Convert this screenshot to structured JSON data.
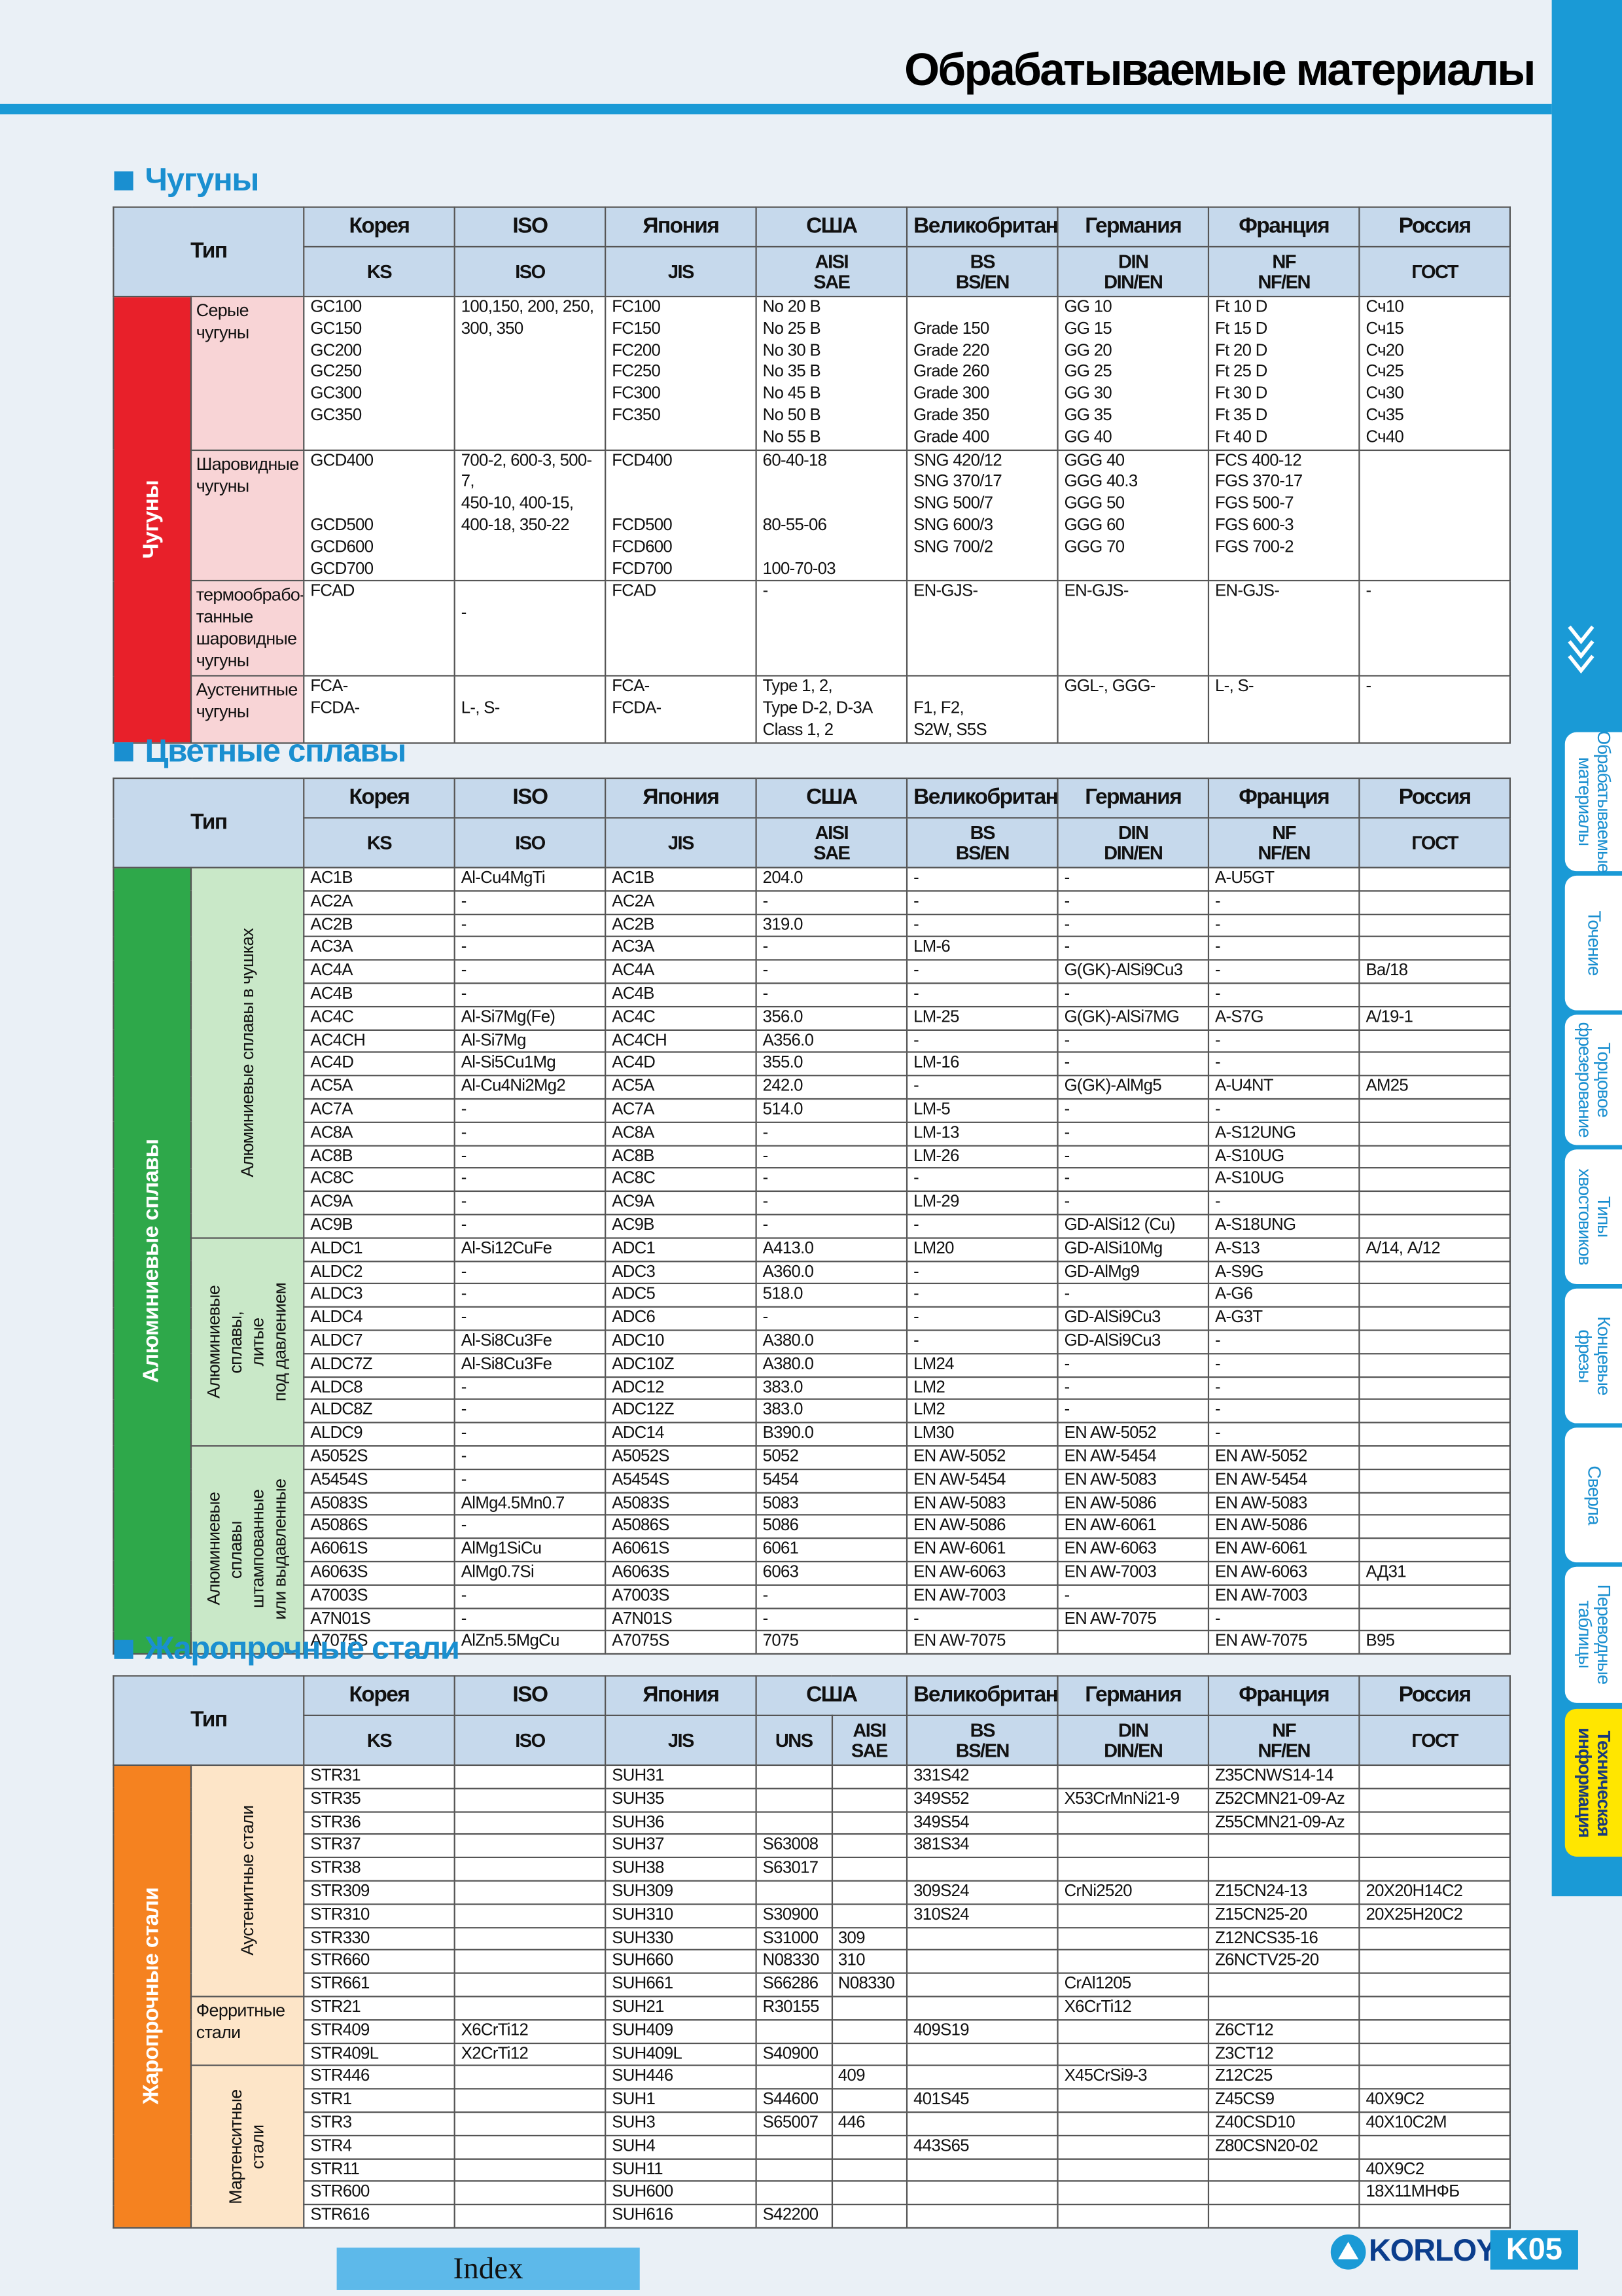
{
  "header": {
    "title": "Обрабатываемые материалы"
  },
  "sections": [
    {
      "title": "Чугуны",
      "type_label": "Тип",
      "columns": [
        {
          "country": "Корея",
          "standards": [
            "KS"
          ]
        },
        {
          "country": "ISO",
          "standards": [
            "ISO"
          ]
        },
        {
          "country": "Япония",
          "standards": [
            "JIS"
          ]
        },
        {
          "country": "США",
          "standards": [
            "AISI\nSAE"
          ]
        },
        {
          "country": "Великобритания",
          "standards": [
            "BS\nBS/EN"
          ]
        },
        {
          "country": "Германия",
          "standards": [
            "DIN\nDIN/EN"
          ]
        },
        {
          "country": "Франция",
          "standards": [
            "NF\nNF/EN"
          ]
        },
        {
          "country": "Россия",
          "standards": [
            "ГОСТ"
          ]
        }
      ],
      "group": "Чугуны",
      "subgroups": [
        {
          "name": "Серые\nчугуны",
          "rows": [
            [
              "GC100\nGC150\nGC200\nGC250\nGC300\nGC350",
              "100,150, 200, 250,\n300, 350",
              "FC100\nFC150\nFC200\nFC250\nFC300\nFC350",
              "No 20 B\nNo 25 B\nNo 30 B\nNo 35 B\nNo 45 B\nNo 50 B\nNo 55 B",
              "\nGrade 150\nGrade 220\nGrade 260\nGrade 300\nGrade 350\nGrade 400",
              "GG 10\nGG 15\nGG 20\nGG 25\nGG 30\nGG 35\nGG 40",
              "Ft 10 D\nFt 15 D\nFt 20 D\nFt 25 D\nFt 30 D\nFt 35 D\nFt 40 D",
              "Сч10\nСч15\nСч20\nСч25\nСч30\nСч35\nСч40"
            ]
          ]
        },
        {
          "name": "Шаровидные\nчугуны",
          "rows": [
            [
              "GCD400\n\n\nGCD500\nGCD600\nGCD700",
              "700-2, 600-3, 500-\n7,\n450-10, 400-15,\n400-18, 350-22",
              "FCD400\n\n\nFCD500\nFCD600\nFCD700",
              "60-40-18\n\n\n80-55-06\n\n100-70-03",
              "SNG 420/12\nSNG 370/17\nSNG 500/7\nSNG 600/3\nSNG 700/2",
              "GGG 40\nGGG 40.3\nGGG 50\nGGG 60\nGGG 70",
              "FCS 400-12\nFGS 370-17\nFGS 500-7\nFGS 600-3\nFGS 700-2",
              null
            ]
          ]
        },
        {
          "name": "термообрабо-\nтанные\nшаровидные\nчугуны",
          "rows": [
            [
              "FCAD",
              "\n-",
              "FCAD",
              "-",
              "EN-GJS-",
              "EN-GJS-",
              "EN-GJS-",
              "-"
            ]
          ]
        },
        {
          "name": "Аустенитные\nчугуны",
          "rows": [
            [
              "FCA-\nFCDA-",
              "\nL-, S-",
              "FCA-\nFCDA-",
              "Type 1, 2,\nType D-2, D-3A\nClass 1, 2",
              "\nF1, F2,\nS2W, S5S",
              "GGL-, GGG-",
              "L-, S-",
              "-"
            ]
          ]
        }
      ]
    },
    {
      "title": "Цветные сплавы",
      "type_label": "Тип",
      "columns": [
        {
          "country": "Корея",
          "standards": [
            "KS"
          ]
        },
        {
          "country": "ISO",
          "standards": [
            "ISO"
          ]
        },
        {
          "country": "Япония",
          "standards": [
            "JIS"
          ]
        },
        {
          "country": "США",
          "standards": [
            "AISI\nSAE"
          ]
        },
        {
          "country": "Великобритания",
          "standards": [
            "BS\nBS/EN"
          ]
        },
        {
          "country": "Германия",
          "standards": [
            "DIN\nDIN/EN"
          ]
        },
        {
          "country": "Франция",
          "standards": [
            "NF\nNF/EN"
          ]
        },
        {
          "country": "Россия",
          "standards": [
            "ГОСТ"
          ]
        }
      ],
      "group": "Алюминиевые сплавы",
      "subgroups": [
        {
          "name": "Алюминиевые сплавы в чушках",
          "rows": [
            [
              "AC1B",
              "Al-Cu4MgTi",
              "AC1B",
              "204.0",
              "-",
              "-",
              "A-U5GT",
              null
            ],
            [
              "AC2A",
              "-",
              "AC2A",
              "-",
              "-",
              "-",
              "-",
              null
            ],
            [
              "AC2B",
              "-",
              "AC2B",
              "319.0",
              "-",
              "-",
              "-",
              null
            ],
            [
              "AC3A",
              "-",
              "AC3A",
              "-",
              "LM-6",
              "-",
              "-",
              null
            ],
            [
              "AC4A",
              "-",
              "AC4A",
              "-",
              "-",
              "G(GK)-AlSi9Cu3",
              "-",
              "Ва/18"
            ],
            [
              "AC4B",
              "-",
              "AC4B",
              "-",
              "-",
              "-",
              "-",
              null
            ],
            [
              "AC4C",
              "Al-Si7Mg(Fe)",
              "AC4C",
              "356.0",
              "LM-25",
              "G(GK)-AlSi7MG",
              "A-S7G",
              "А/19-1"
            ],
            [
              "AC4CH",
              "Al-Si7Mg",
              "AC4CH",
              "A356.0",
              "-",
              "-",
              "-",
              null
            ],
            [
              "AC4D",
              "Al-Si5Cu1Mg",
              "AC4D",
              "355.0",
              "LM-16",
              "-",
              "-",
              null
            ],
            [
              "AC5A",
              "Al-Cu4Ni2Mg2",
              "AC5A",
              "242.0",
              "-",
              "G(GK)-AlMg5",
              "A-U4NT",
              "АМ25"
            ],
            [
              "AC7A",
              "-",
              "AC7A",
              "514.0",
              "LM-5",
              "-",
              "-",
              null
            ],
            [
              "AC8A",
              "-",
              "AC8A",
              "-",
              "LM-13",
              "-",
              "A-S12UNG",
              null
            ],
            [
              "AC8B",
              "-",
              "AC8B",
              "-",
              "LM-26",
              "-",
              "A-S10UG",
              null
            ],
            [
              "AC8C",
              "-",
              "AC8C",
              "-",
              "-",
              "-",
              "A-S10UG",
              null
            ],
            [
              "AC9A",
              "-",
              "AC9A",
              "-",
              "LM-29",
              "-",
              "-",
              null
            ],
            [
              "AC9B",
              "-",
              "AC9B",
              "-",
              "-",
              "GD-AlSi12 (Cu)",
              "A-S18UNG",
              null
            ]
          ]
        },
        {
          "name": "Алюминиевые\nсплавы,\nлитые\nпод давлением",
          "rows": [
            [
              "ALDC1",
              "Al-Si12CuFe",
              "ADC1",
              "A413.0",
              "LM20",
              "GD-AlSi10Mg",
              "A-S13",
              "А/14, А/12"
            ],
            [
              "ALDC2",
              "-",
              "ADC3",
              "A360.0",
              "-",
              "GD-AlMg9",
              "A-S9G",
              null
            ],
            [
              "ALDC3",
              "-",
              "ADC5",
              "518.0",
              "-",
              "-",
              "A-G6",
              null
            ],
            [
              "ALDC4",
              "-",
              "ADC6",
              "-",
              "-",
              "GD-AlSi9Cu3",
              "A-G3T",
              null
            ],
            [
              "ALDC7",
              "Al-Si8Cu3Fe",
              "ADC10",
              "A380.0",
              "-",
              "GD-AlSi9Cu3",
              "-",
              null
            ],
            [
              "ALDC7Z",
              "Al-Si8Cu3Fe",
              "ADC10Z",
              "A380.0",
              "LM24",
              "-",
              "-",
              null
            ],
            [
              "ALDC8",
              "-",
              "ADC12",
              "383.0",
              "LM2",
              "-",
              "-",
              null
            ],
            [
              "ALDC8Z",
              "-",
              "ADC12Z",
              "383.0",
              "LM2",
              "-",
              "-",
              null
            ],
            [
              "ALDC9",
              "-",
              "ADC14",
              "B390.0",
              "LM30",
              "EN AW-5052",
              "-",
              null
            ]
          ]
        },
        {
          "name": "Алюминиевые\nсплавы\nштампованные\nили выдавленные",
          "rows": [
            [
              "A5052S",
              "-",
              "A5052S",
              "5052",
              "EN AW-5052",
              "EN AW-5454",
              "EN AW-5052",
              null
            ],
            [
              "A5454S",
              "-",
              "A5454S",
              "5454",
              "EN AW-5454",
              "EN AW-5083",
              "EN AW-5454",
              null
            ],
            [
              "A5083S",
              "AlMg4.5Mn0.7",
              "A5083S",
              "5083",
              "EN AW-5083",
              "EN AW-5086",
              "EN AW-5083",
              null
            ],
            [
              "A5086S",
              "-",
              "A5086S",
              "5086",
              "EN AW-5086",
              "EN AW-6061",
              "EN AW-5086",
              null
            ],
            [
              "A6061S",
              "AlMg1SiCu",
              "A6061S",
              "6061",
              "EN AW-6061",
              "EN AW-6063",
              "EN AW-6061",
              null
            ],
            [
              "A6063S",
              "AlMg0.7Si",
              "A6063S",
              "6063",
              "EN AW-6063",
              "EN AW-7003",
              "EN AW-6063",
              "АД31"
            ],
            [
              "A7003S",
              "-",
              "A7003S",
              "-",
              "EN AW-7003",
              "-",
              "EN AW-7003",
              null
            ],
            [
              "A7N01S",
              "-",
              "A7N01S",
              "-",
              "-",
              "EN AW-7075",
              "-",
              null
            ],
            [
              "A7075S",
              "AlZn5.5MgCu",
              "A7075S",
              "7075",
              "EN AW-7075",
              null,
              "EN AW-7075",
              "В95"
            ]
          ]
        }
      ]
    },
    {
      "title": "Жаропрочные стали",
      "type_label": "Тип",
      "columns": [
        {
          "country": "Корея",
          "standards": [
            "KS"
          ]
        },
        {
          "country": "ISO",
          "standards": [
            "ISO"
          ]
        },
        {
          "country": "Япония",
          "standards": [
            "JIS"
          ]
        },
        {
          "country": "США",
          "standards": [
            "UNS",
            "AISI\nSAE"
          ]
        },
        {
          "country": "Великобритания",
          "standards": [
            "BS\nBS/EN"
          ]
        },
        {
          "country": "Германия",
          "standards": [
            "DIN\nDIN/EN"
          ]
        },
        {
          "country": "Франция",
          "standards": [
            "NF\nNF/EN"
          ]
        },
        {
          "country": "Россия",
          "standards": [
            "ГОСТ"
          ]
        }
      ],
      "group": "Жаропрочные стали",
      "subgroups": [
        {
          "name": "Аустенитные стали",
          "rows": [
            [
              "STR31",
              null,
              "SUH31",
              null,
              null,
              "331S42",
              null,
              "Z35CNWS14-14",
              null
            ],
            [
              "STR35",
              null,
              "SUH35",
              null,
              null,
              "349S52",
              "X53CrMnNi21-9",
              "Z52CMN21-09-Az",
              null
            ],
            [
              "STR36",
              null,
              "SUH36",
              null,
              null,
              "349S54",
              null,
              "Z55CMN21-09-Az",
              null
            ],
            [
              "STR37",
              null,
              "SUH37",
              "S63008",
              null,
              "381S34",
              null,
              null,
              null
            ],
            [
              "STR38",
              null,
              "SUH38",
              "S63017",
              null,
              null,
              null,
              null,
              null
            ],
            [
              "STR309",
              null,
              "SUH309",
              null,
              null,
              "309S24",
              "CrNi2520",
              "Z15CN24-13",
              "20Х20Н14С2"
            ],
            [
              "STR310",
              null,
              "SUH310",
              "S30900",
              null,
              "310S24",
              null,
              "Z15CN25-20",
              "20Х25Н20С2"
            ],
            [
              "STR330",
              null,
              "SUH330",
              "S31000",
              "309",
              null,
              null,
              "Z12NCS35-16",
              null
            ],
            [
              "STR660",
              null,
              "SUH660",
              "N08330",
              "310",
              null,
              null,
              "Z6NCTV25-20",
              null
            ],
            [
              "STR661",
              null,
              "SUH661",
              "S66286",
              "N08330",
              null,
              "CrAl1205",
              null,
              null
            ]
          ]
        },
        {
          "name": "Ферритные\nстали",
          "rows": [
            [
              "STR21",
              null,
              "SUH21",
              "R30155",
              null,
              null,
              "X6CrTi12",
              null,
              null
            ],
            [
              "STR409",
              "X6CrTi12",
              "SUH409",
              null,
              null,
              "409S19",
              null,
              "Z6CT12",
              null
            ],
            [
              "STR409L",
              "X2CrTi12",
              "SUH409L",
              "S40900",
              null,
              null,
              null,
              "Z3CT12",
              null
            ]
          ]
        },
        {
          "name": "Мартенситные\nстали",
          "rows": [
            [
              "STR446",
              null,
              "SUH446",
              null,
              "409",
              null,
              "X45CrSi9-3",
              "Z12C25",
              null
            ],
            [
              "STR1",
              null,
              "SUH1",
              "S44600",
              null,
              "401S45",
              null,
              "Z45CS9",
              "40Х9С2"
            ],
            [
              "STR3",
              null,
              "SUH3",
              "S65007",
              "446",
              null,
              null,
              "Z40CSD10",
              "40Х10С2М"
            ],
            [
              "STR4",
              null,
              "SUH4",
              null,
              null,
              "443S65",
              null,
              "Z80CSN20-02",
              null
            ],
            [
              "STR11",
              null,
              "SUH11",
              null,
              null,
              null,
              null,
              null,
              "40Х9С2"
            ],
            [
              "STR600",
              null,
              "SUH600",
              null,
              null,
              null,
              null,
              null,
              "18Х11МНФБ"
            ],
            [
              "STR616",
              null,
              "SUH616",
              "S42200",
              null,
              null,
              null,
              null,
              null
            ]
          ]
        }
      ]
    }
  ],
  "sidebar": {
    "tabs": [
      "Обрабатываемые\nматериалы",
      "Точение",
      "Торцовое\nфрезерование",
      "Типы\nхвостовиков",
      "Концевые\nфрезы",
      "Сверла",
      "Переводные\nтаблицы",
      "Техническая\nинформация"
    ]
  },
  "footer": {
    "index": "Index",
    "brand": "KORLOY",
    "page": "K05"
  }
}
